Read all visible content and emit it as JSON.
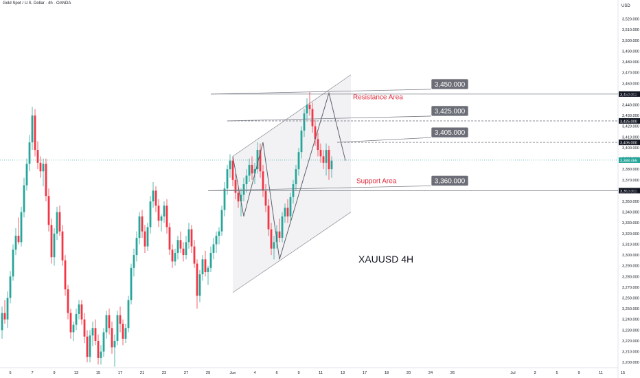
{
  "header": {
    "symbol_title": "Gold Spot / U.S. Dollar · 4h · OANDA",
    "currency": "USD"
  },
  "colors": {
    "up": "#26a69a",
    "down": "#f23645",
    "zigzag": "#5d606b",
    "channel": "#9598a1",
    "level_line": "#787b86",
    "label_bg": "#6b6e76",
    "label_text": "#ffffff",
    "annotation_red": "#e0293a",
    "price_tag": "#26a69a",
    "watermark": "#131722"
  },
  "chart_data": {
    "type": "candlestick",
    "title": "",
    "watermark": "XAUUSD 4H",
    "ylim": [
      3195,
      3530
    ],
    "y_axis": {
      "side": "right",
      "ticks": [
        3200,
        3210,
        3220,
        3230,
        3240,
        3250,
        3260,
        3270,
        3280,
        3290,
        3300,
        3310,
        3320,
        3330,
        3340,
        3350,
        3360,
        3370,
        3380,
        3390,
        3400,
        3410,
        3420,
        3430,
        3440,
        3450,
        3460,
        3470,
        3480,
        3490,
        3500,
        3510,
        3520
      ],
      "tick_labels": [
        "3,200.000",
        "3,210.000",
        "3,220.000",
        "3,230.000",
        "3,240.000",
        "3,250.000",
        "3,260.000",
        "3,270.000",
        "3,280.000",
        "3,290.000",
        "3,300.000",
        "3,310.000",
        "3,320.000",
        "3,330.000",
        "3,340.000",
        "3,350.000",
        "3,360.000",
        "3,370.000",
        "3,380.000",
        "3,390.000",
        "3,400.000",
        "3,410.000",
        "3,420.000",
        "3,430.000",
        "3,440.000",
        "3,450.000",
        "3,460.000",
        "3,470.000",
        "3,480.000",
        "3,490.000",
        "3,500.000",
        "3,510.000",
        "3,520.000"
      ]
    },
    "x_axis": {
      "tick_labels": [
        "5",
        "7",
        "9",
        "13",
        "15",
        "17",
        "21",
        "23",
        "27",
        "29",
        "Jun",
        "4",
        "6",
        "9",
        "11",
        "13",
        "17",
        "18",
        "20",
        "24",
        "26",
        "Jul",
        "3",
        "5",
        "9",
        "11",
        "15",
        "17",
        "19",
        "23"
      ],
      "tick_index": [
        3,
        11,
        19,
        27,
        35,
        43,
        51,
        59,
        67,
        75,
        84,
        92,
        100,
        108,
        116,
        124,
        132,
        140,
        148,
        156,
        164,
        186,
        194,
        202,
        210,
        218,
        226,
        234,
        242,
        250
      ]
    },
    "current_price": {
      "value": 3388.455,
      "label": "3,388.455"
    },
    "candles": [
      [
        3230,
        3252,
        3222,
        3246
      ],
      [
        3246,
        3258,
        3236,
        3240
      ],
      [
        3240,
        3266,
        3232,
        3260
      ],
      [
        3260,
        3285,
        3255,
        3280
      ],
      [
        3280,
        3310,
        3276,
        3305
      ],
      [
        3305,
        3325,
        3300,
        3318
      ],
      [
        3318,
        3335,
        3310,
        3312
      ],
      [
        3312,
        3345,
        3308,
        3340
      ],
      [
        3340,
        3372,
        3335,
        3365
      ],
      [
        3365,
        3390,
        3360,
        3385
      ],
      [
        3385,
        3412,
        3378,
        3405
      ],
      [
        3405,
        3438,
        3398,
        3430
      ],
      [
        3430,
        3436,
        3392,
        3398
      ],
      [
        3398,
        3406,
        3380,
        3386
      ],
      [
        3386,
        3392,
        3372,
        3378
      ],
      [
        3378,
        3390,
        3364,
        3385
      ],
      [
        3385,
        3390,
        3350,
        3355
      ],
      [
        3355,
        3362,
        3322,
        3328
      ],
      [
        3328,
        3334,
        3292,
        3298
      ],
      [
        3298,
        3325,
        3290,
        3320
      ],
      [
        3320,
        3345,
        3314,
        3340
      ],
      [
        3340,
        3346,
        3318,
        3322
      ],
      [
        3322,
        3328,
        3290,
        3295
      ],
      [
        3295,
        3300,
        3262,
        3268
      ],
      [
        3268,
        3272,
        3240,
        3246
      ],
      [
        3246,
        3250,
        3222,
        3228
      ],
      [
        3228,
        3238,
        3220,
        3235
      ],
      [
        3235,
        3250,
        3230,
        3245
      ],
      [
        3245,
        3258,
        3240,
        3254
      ],
      [
        3254,
        3258,
        3235,
        3240
      ],
      [
        3240,
        3246,
        3218,
        3224
      ],
      [
        3224,
        3230,
        3200,
        3205
      ],
      [
        3205,
        3230,
        3200,
        3225
      ],
      [
        3225,
        3238,
        3215,
        3232
      ],
      [
        3232,
        3240,
        3216,
        3220
      ],
      [
        3220,
        3226,
        3198,
        3204
      ],
      [
        3204,
        3216,
        3198,
        3210
      ],
      [
        3210,
        3232,
        3205,
        3228
      ],
      [
        3228,
        3248,
        3222,
        3244
      ],
      [
        3244,
        3250,
        3226,
        3232
      ],
      [
        3232,
        3238,
        3208,
        3214
      ],
      [
        3214,
        3226,
        3196,
        3220
      ],
      [
        3220,
        3248,
        3216,
        3244
      ],
      [
        3244,
        3252,
        3228,
        3236
      ],
      [
        3236,
        3240,
        3216,
        3222
      ],
      [
        3222,
        3236,
        3218,
        3232
      ],
      [
        3232,
        3262,
        3228,
        3258
      ],
      [
        3258,
        3292,
        3254,
        3288
      ],
      [
        3288,
        3306,
        3280,
        3300
      ],
      [
        3300,
        3322,
        3294,
        3316
      ],
      [
        3316,
        3340,
        3310,
        3336
      ],
      [
        3336,
        3342,
        3316,
        3322
      ],
      [
        3322,
        3328,
        3302,
        3308
      ],
      [
        3308,
        3330,
        3304,
        3326
      ],
      [
        3326,
        3355,
        3320,
        3350
      ],
      [
        3350,
        3368,
        3344,
        3360
      ],
      [
        3360,
        3364,
        3340,
        3346
      ],
      [
        3346,
        3352,
        3326,
        3332
      ],
      [
        3332,
        3338,
        3322,
        3336
      ],
      [
        3336,
        3350,
        3330,
        3346
      ],
      [
        3346,
        3352,
        3320,
        3326
      ],
      [
        3326,
        3330,
        3300,
        3305
      ],
      [
        3305,
        3310,
        3288,
        3294
      ],
      [
        3294,
        3306,
        3290,
        3302
      ],
      [
        3302,
        3318,
        3296,
        3314
      ],
      [
        3314,
        3322,
        3302,
        3306
      ],
      [
        3306,
        3312,
        3294,
        3300
      ],
      [
        3300,
        3318,
        3296,
        3312
      ],
      [
        3312,
        3330,
        3306,
        3324
      ],
      [
        3324,
        3328,
        3302,
        3308
      ],
      [
        3308,
        3314,
        3288,
        3292
      ],
      [
        3292,
        3296,
        3250,
        3262
      ],
      [
        3262,
        3286,
        3256,
        3282
      ],
      [
        3282,
        3300,
        3276,
        3296
      ],
      [
        3296,
        3304,
        3280,
        3284
      ],
      [
        3284,
        3290,
        3272,
        3288
      ],
      [
        3288,
        3308,
        3284,
        3302
      ],
      [
        3302,
        3316,
        3296,
        3310
      ],
      [
        3310,
        3322,
        3302,
        3318
      ],
      [
        3318,
        3326,
        3310,
        3322
      ],
      [
        3322,
        3346,
        3318,
        3342
      ],
      [
        3342,
        3368,
        3336,
        3362
      ],
      [
        3362,
        3384,
        3356,
        3380
      ],
      [
        3380,
        3394,
        3372,
        3388
      ],
      [
        3388,
        3392,
        3364,
        3370
      ],
      [
        3370,
        3376,
        3352,
        3358
      ],
      [
        3358,
        3364,
        3344,
        3350
      ],
      [
        3350,
        3362,
        3336,
        3356
      ],
      [
        3356,
        3372,
        3350,
        3366
      ],
      [
        3366,
        3380,
        3358,
        3374
      ],
      [
        3374,
        3390,
        3368,
        3384
      ],
      [
        3384,
        3392,
        3370,
        3376
      ],
      [
        3376,
        3386,
        3366,
        3380
      ],
      [
        3380,
        3405,
        3376,
        3398
      ],
      [
        3398,
        3404,
        3372,
        3378
      ],
      [
        3378,
        3384,
        3354,
        3360
      ],
      [
        3360,
        3366,
        3340,
        3346
      ],
      [
        3346,
        3352,
        3318,
        3324
      ],
      [
        3324,
        3330,
        3300,
        3306
      ],
      [
        3306,
        3318,
        3296,
        3312
      ],
      [
        3312,
        3328,
        3306,
        3322
      ],
      [
        3322,
        3334,
        3312,
        3316
      ],
      [
        3316,
        3340,
        3312,
        3336
      ],
      [
        3336,
        3348,
        3330,
        3344
      ],
      [
        3344,
        3352,
        3330,
        3336
      ],
      [
        3336,
        3358,
        3332,
        3354
      ],
      [
        3354,
        3370,
        3348,
        3366
      ],
      [
        3366,
        3384,
        3360,
        3380
      ],
      [
        3380,
        3400,
        3374,
        3396
      ],
      [
        3396,
        3420,
        3390,
        3416
      ],
      [
        3416,
        3436,
        3410,
        3432
      ],
      [
        3432,
        3446,
        3426,
        3440
      ],
      [
        3440,
        3452,
        3430,
        3436
      ],
      [
        3436,
        3442,
        3414,
        3420
      ],
      [
        3420,
        3426,
        3402,
        3408
      ],
      [
        3408,
        3414,
        3392,
        3398
      ],
      [
        3398,
        3404,
        3386,
        3392
      ],
      [
        3392,
        3398,
        3380,
        3386
      ],
      [
        3386,
        3404,
        3374,
        3398
      ],
      [
        3398,
        3402,
        3370,
        3380
      ],
      [
        3380,
        3392,
        3372,
        3388
      ]
    ],
    "levels": [
      {
        "value": 3450.0,
        "label": "3,450.000",
        "style": "solid"
      },
      {
        "value": 3425.0,
        "label": "3,425.000",
        "style": "dashed"
      },
      {
        "value": 3405.0,
        "label": "3,405.000",
        "style": "dashed"
      },
      {
        "value": 3360.0,
        "label": "3,360.000",
        "style": "solid"
      }
    ],
    "annotations": [
      {
        "text": "Resistance Area"
      },
      {
        "text": "Support Area"
      }
    ]
  }
}
